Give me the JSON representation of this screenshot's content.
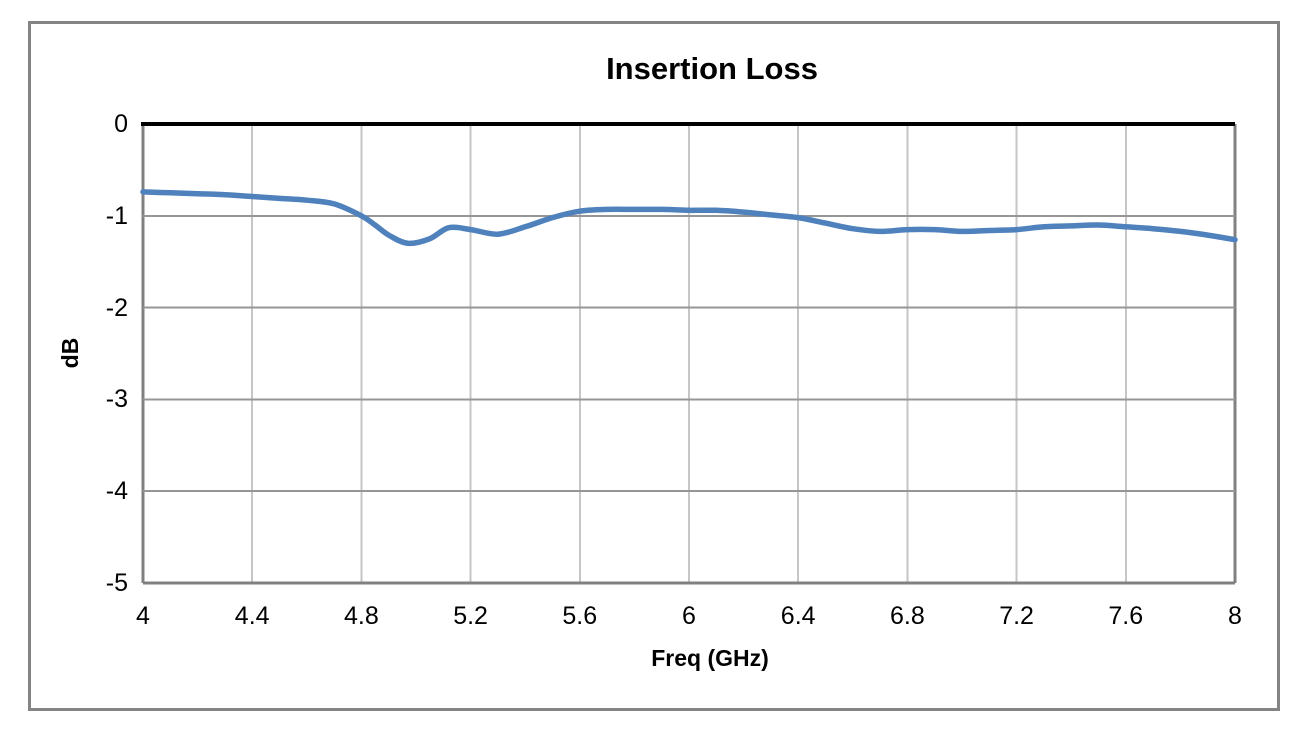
{
  "chart_data": {
    "type": "line",
    "title": "Insertion Loss",
    "xlabel": "Freq (GHz)",
    "ylabel": "dB",
    "xlim": [
      4,
      8
    ],
    "ylim": [
      -5,
      0
    ],
    "grid": true,
    "legend": "none",
    "x_ticks": [
      4,
      4.4,
      4.8,
      5.2,
      5.6,
      6,
      6.4,
      6.8,
      7.2,
      7.6,
      8
    ],
    "x_tick_labels": [
      "4",
      "4.4",
      "4.8",
      "5.2",
      "5.6",
      "6",
      "6.4",
      "6.8",
      "7.2",
      "7.6",
      "8"
    ],
    "y_ticks": [
      0,
      -1,
      -2,
      -3,
      -4,
      -5
    ],
    "y_tick_labels": [
      "0",
      "-1",
      "-2",
      "-3",
      "-4",
      "-5"
    ],
    "series": [
      {
        "name": "Insertion Loss",
        "color": "#4F81BD",
        "x": [
          4.0,
          4.1,
          4.2,
          4.3,
          4.4,
          4.5,
          4.6,
          4.7,
          4.8,
          4.85,
          4.9,
          4.97,
          5.05,
          5.12,
          5.2,
          5.3,
          5.4,
          5.5,
          5.6,
          5.7,
          5.8,
          5.9,
          6.0,
          6.1,
          6.2,
          6.3,
          6.4,
          6.5,
          6.6,
          6.7,
          6.8,
          6.9,
          7.0,
          7.1,
          7.2,
          7.3,
          7.4,
          7.5,
          7.6,
          7.7,
          7.8,
          7.9,
          8.0
        ],
        "y": [
          -0.74,
          -0.75,
          -0.76,
          -0.77,
          -0.79,
          -0.81,
          -0.83,
          -0.87,
          -1.0,
          -1.1,
          -1.21,
          -1.3,
          -1.25,
          -1.13,
          -1.15,
          -1.2,
          -1.12,
          -1.02,
          -0.95,
          -0.93,
          -0.93,
          -0.93,
          -0.94,
          -0.94,
          -0.96,
          -0.99,
          -1.02,
          -1.08,
          -1.14,
          -1.17,
          -1.15,
          -1.15,
          -1.17,
          -1.16,
          -1.15,
          -1.12,
          -1.11,
          -1.1,
          -1.12,
          -1.14,
          -1.17,
          -1.21,
          -1.26
        ]
      }
    ],
    "colors": {
      "line": "#4F81BD",
      "zero_line": "#000000",
      "h_grid": "#969696",
      "v_grid": "#C6C6C6",
      "axis_edge": "#808080",
      "frame_border": "#848484",
      "text": "#000000",
      "background": "#FFFFFF"
    }
  }
}
